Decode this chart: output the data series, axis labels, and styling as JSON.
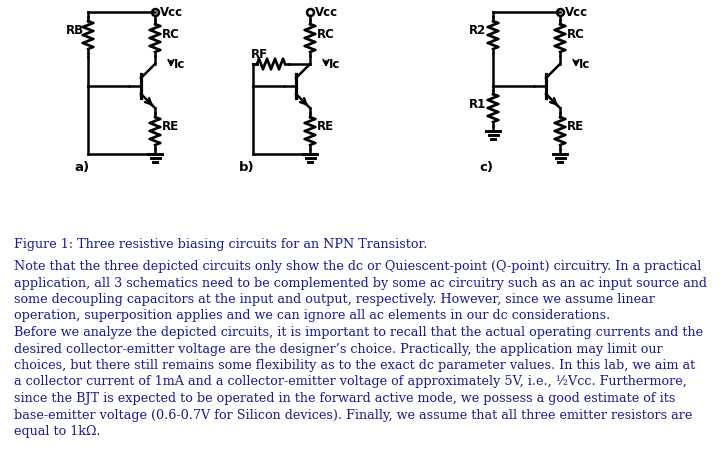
{
  "background_color": "#ffffff",
  "figure_caption": "Figure 1: Three resistive biasing circuits for an NPN Transistor.",
  "body_text": [
    "Note that the three depicted circuits only show the dc or Quiescent-point (Q-point) circuitry. In a practical",
    "application, all 3 schematics need to be complemented by some ac circuitry such as an ac input source and",
    "some decoupling capacitors at the input and output, respectively. However, since we assume linear",
    "operation, superposition applies and we can ignore all ac elements in our dc considerations.",
    "Before we analyze the depicted circuits, it is important to recall that the actual operating currents and the",
    "desired collector-emitter voltage are the designer’s choice. Practically, the application may limit our",
    "choices, but there still remains some flexibility as to the exact dc parameter values. In this lab, we aim at",
    "a collector current of 1mA and a collector-emitter voltage of approximately 5V, i.e., ½Vcc. Furthermore,",
    "since the BJT is expected to be operated in the forward active mode, we possess a good estimate of its",
    "base-emitter voltage (0.6-0.7V for Silicon devices). Finally, we assume that all three emitter resistors are",
    "equal to 1kΩ."
  ],
  "text_color": "#1a1a8c",
  "circuit_line_color": "#000000",
  "font_size_body": 9.2,
  "font_size_caption": 9.2,
  "bold_words": [
    "all",
    "three"
  ]
}
